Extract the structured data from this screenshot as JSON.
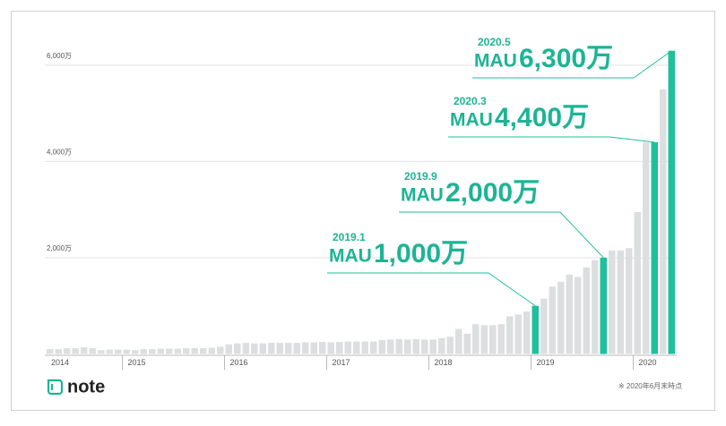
{
  "chart_data": {
    "type": "bar",
    "categories": [
      "2014",
      null,
      null,
      null,
      null,
      null,
      null,
      null,
      null,
      "2015",
      null,
      null,
      null,
      null,
      null,
      null,
      null,
      null,
      null,
      null,
      null,
      "2016",
      null,
      null,
      null,
      null,
      null,
      null,
      null,
      null,
      null,
      null,
      null,
      "2017",
      null,
      null,
      null,
      null,
      null,
      null,
      null,
      null,
      null,
      null,
      null,
      "2018",
      null,
      null,
      null,
      null,
      null,
      null,
      null,
      null,
      null,
      null,
      null,
      "2019",
      null,
      null,
      null,
      null,
      null,
      null,
      null,
      null,
      null,
      null,
      null,
      "2020",
      null,
      null,
      null,
      null
    ],
    "series": [
      {
        "color": "#dcdfdf",
        "values": [
          100,
          100,
          120,
          120,
          140,
          120,
          80,
          90,
          90,
          90,
          80,
          100,
          100,
          110,
          110,
          110,
          120,
          120,
          120,
          130,
          150,
          200,
          220,
          230,
          220,
          220,
          230,
          230,
          230,
          230,
          240,
          240,
          250,
          240,
          250,
          260,
          260,
          260,
          260,
          290,
          300,
          310,
          300,
          310,
          300,
          300,
          330,
          360,
          520,
          420,
          620,
          600,
          600,
          620,
          780,
          820,
          880,
          null,
          1150,
          1400,
          1500,
          1650,
          1600,
          1800,
          1950,
          null,
          2150,
          2150,
          2200,
          2950,
          4400,
          null,
          5500,
          null
        ]
      },
      {
        "color": "#1fbf9c",
        "annotation_label": "MAU",
        "values": [
          null,
          null,
          null,
          null,
          null,
          null,
          null,
          null,
          null,
          null,
          null,
          null,
          null,
          null,
          null,
          null,
          null,
          null,
          null,
          null,
          null,
          null,
          null,
          null,
          null,
          null,
          null,
          null,
          null,
          null,
          null,
          null,
          null,
          null,
          null,
          null,
          null,
          null,
          null,
          null,
          null,
          null,
          null,
          null,
          null,
          null,
          null,
          null,
          null,
          null,
          null,
          null,
          null,
          null,
          null,
          null,
          null,
          1000,
          null,
          null,
          null,
          null,
          null,
          null,
          null,
          2000,
          null,
          null,
          null,
          null,
          null,
          4400,
          null,
          6300
        ],
        "value_labels": [
          null,
          null,
          null,
          null,
          null,
          null,
          null,
          null,
          null,
          null,
          null,
          null,
          null,
          null,
          null,
          null,
          null,
          null,
          null,
          null,
          null,
          null,
          null,
          null,
          null,
          null,
          null,
          null,
          null,
          null,
          null,
          null,
          null,
          null,
          null,
          null,
          null,
          null,
          null,
          null,
          null,
          null,
          null,
          null,
          null,
          null,
          null,
          null,
          null,
          null,
          null,
          null,
          null,
          null,
          null,
          null,
          null,
          "1,000万",
          null,
          null,
          null,
          null,
          null,
          null,
          null,
          "2,000万",
          null,
          null,
          null,
          null,
          null,
          "4,400万",
          null,
          "6,300万"
        ],
        "dates": [
          null,
          null,
          null,
          null,
          null,
          null,
          null,
          null,
          null,
          null,
          null,
          null,
          null,
          null,
          null,
          null,
          null,
          null,
          null,
          null,
          null,
          null,
          null,
          null,
          null,
          null,
          null,
          null,
          null,
          null,
          null,
          null,
          null,
          null,
          null,
          null,
          null,
          null,
          null,
          null,
          null,
          null,
          null,
          null,
          null,
          null,
          null,
          null,
          null,
          null,
          null,
          null,
          null,
          null,
          null,
          null,
          null,
          "2019.1",
          null,
          null,
          null,
          null,
          null,
          null,
          null,
          "2019.9",
          null,
          null,
          null,
          null,
          null,
          "2020.3",
          null,
          "2020.5"
        ]
      }
    ],
    "ylim": [
      0,
      6500
    ],
    "yticks": [
      {
        "value": 2000,
        "label": "2,000万"
      },
      {
        "value": 4000,
        "label": "4,000万"
      },
      {
        "value": 6000,
        "label": "6,000万"
      }
    ],
    "grid": true
  },
  "footer": {
    "logo": "note",
    "note": "※ 2020年6月末時点"
  }
}
